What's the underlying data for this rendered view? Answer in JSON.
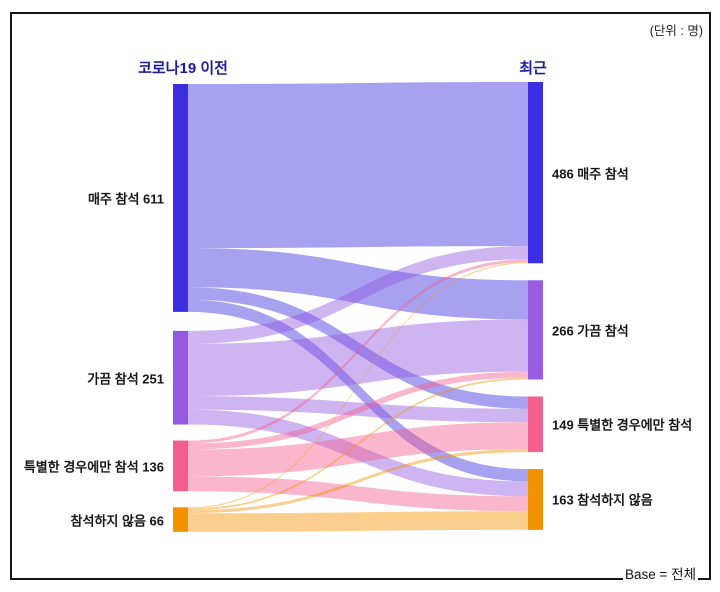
{
  "chart_data": {
    "type": "sankey",
    "unit_label": "(단위 : 명)",
    "base_label": "Base = 전체",
    "columns": [
      {
        "id": "before",
        "label": "코로나19 이전"
      },
      {
        "id": "recent",
        "label": "최근"
      }
    ],
    "nodes": [
      {
        "id": "b-weekly",
        "column": 0,
        "label": "매주 참석 611",
        "value": 611,
        "color": "#3c2ede"
      },
      {
        "id": "b-sometimes",
        "column": 0,
        "label": "가끔 참석 251",
        "value": 251,
        "color": "#9459e2"
      },
      {
        "id": "b-special",
        "column": 0,
        "label": "특별한 경우에만 참석 136",
        "value": 136,
        "color": "#f45e8e"
      },
      {
        "id": "b-never",
        "column": 0,
        "label": "참석하지 않음 66",
        "value": 66,
        "color": "#f39200"
      },
      {
        "id": "r-weekly",
        "column": 1,
        "label": "486 매주 참석",
        "value": 486,
        "color": "#3c2ee2"
      },
      {
        "id": "r-sometimes",
        "column": 1,
        "label": "266 가끔 참석",
        "value": 266,
        "color": "#9a5ce0"
      },
      {
        "id": "r-special",
        "column": 1,
        "label": "149 특별한 경우에만 참석",
        "value": 149,
        "color": "#f4618e"
      },
      {
        "id": "r-never",
        "column": 1,
        "label": "163 참석하지 않음",
        "value": 163,
        "color": "#f29100"
      }
    ],
    "links": [
      {
        "source": "b-weekly",
        "target": "r-weekly",
        "value": 440
      },
      {
        "source": "b-weekly",
        "target": "r-sometimes",
        "value": 105
      },
      {
        "source": "b-weekly",
        "target": "r-special",
        "value": 33
      },
      {
        "source": "b-weekly",
        "target": "r-never",
        "value": 33
      },
      {
        "source": "b-sometimes",
        "target": "r-weekly",
        "value": 35
      },
      {
        "source": "b-sometimes",
        "target": "r-sometimes",
        "value": 140
      },
      {
        "source": "b-sometimes",
        "target": "r-special",
        "value": 36
      },
      {
        "source": "b-sometimes",
        "target": "r-never",
        "value": 40
      },
      {
        "source": "b-special",
        "target": "r-weekly",
        "value": 8
      },
      {
        "source": "b-special",
        "target": "r-sometimes",
        "value": 16
      },
      {
        "source": "b-special",
        "target": "r-special",
        "value": 72
      },
      {
        "source": "b-special",
        "target": "r-never",
        "value": 40
      },
      {
        "source": "b-never",
        "target": "r-weekly",
        "value": 3
      },
      {
        "source": "b-never",
        "target": "r-sometimes",
        "value": 5
      },
      {
        "source": "b-never",
        "target": "r-special",
        "value": 8
      },
      {
        "source": "b-never",
        "target": "r-never",
        "value": 50
      }
    ]
  }
}
